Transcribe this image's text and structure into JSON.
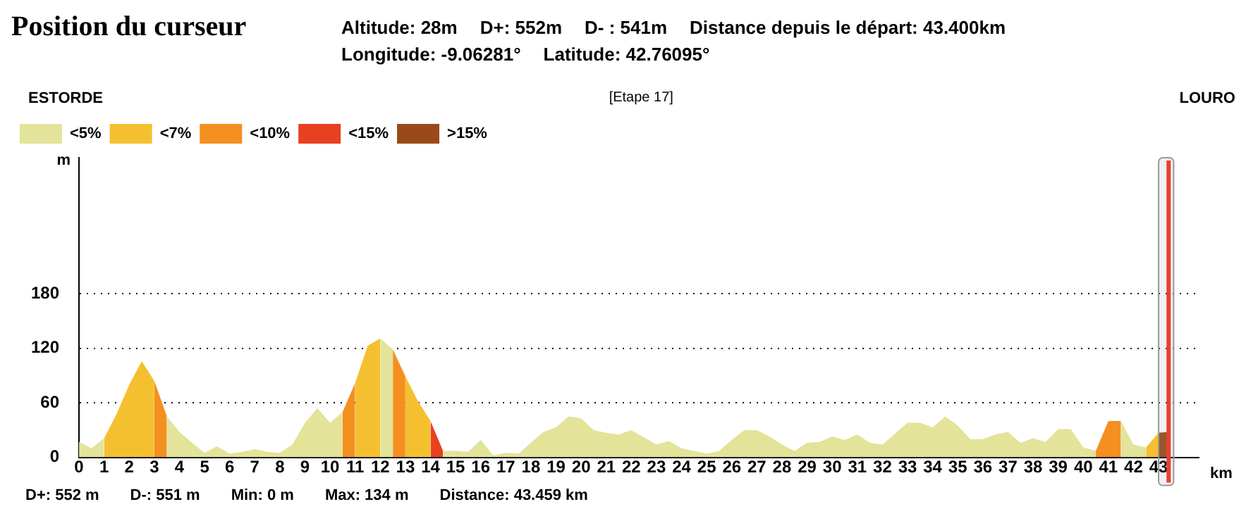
{
  "chart_data": {
    "type": "area",
    "title": "Position du curseur",
    "xlabel": "km",
    "ylabel": "m",
    "annotations": [
      "Altitude: 28m",
      "D+: 552m",
      "D- : 541m",
      "Distance depuis le départ: 43.400km",
      "Longitude: -9.06281°",
      "Latitude: 42.76095°",
      "ESTORDE",
      "[Etape 17]",
      "LOURO",
      "D+: 552 m",
      "D-: 551 m",
      "Min: 0 m",
      "Max: 134 m",
      "Distance: 43.459 km"
    ],
    "x": [
      0,
      0.5,
      1,
      1.5,
      2,
      2.5,
      3,
      3.5,
      4,
      4.5,
      5,
      5.5,
      6,
      6.5,
      7,
      7.5,
      8,
      8.5,
      9,
      9.5,
      10,
      10.5,
      11,
      11.5,
      12,
      12.5,
      13,
      13.5,
      14,
      14.5,
      15,
      15.5,
      16,
      16.5,
      17,
      17.5,
      18,
      18.5,
      19,
      19.5,
      20,
      20.5,
      21,
      21.5,
      22,
      22.5,
      23,
      23.5,
      24,
      24.5,
      25,
      25.5,
      26,
      26.5,
      27,
      27.5,
      28,
      28.5,
      29,
      29.5,
      30,
      30.5,
      31,
      31.5,
      32,
      32.5,
      33,
      33.5,
      34,
      34.5,
      35,
      35.5,
      36,
      36.5,
      37,
      37.5,
      38,
      38.5,
      39,
      39.5,
      40,
      40.5,
      41,
      41.5,
      42,
      42.5
    ],
    "series": [
      {
        "name": "<5%",
        "color": "#e3e39a",
        "values": [
          17,
          10,
          21,
          null,
          null,
          null,
          null,
          45,
          28,
          16,
          5,
          12,
          4,
          6,
          9,
          6,
          5,
          14,
          38,
          54,
          38,
          50,
          null,
          null,
          131,
          119,
          null,
          null,
          null,
          7,
          7,
          6,
          19,
          2,
          5,
          4,
          16,
          28,
          33,
          45,
          43,
          30,
          27,
          25,
          30,
          22,
          14,
          18,
          10,
          7,
          4,
          7,
          19,
          30,
          30,
          23,
          14,
          7,
          16,
          17,
          23,
          19,
          25,
          16,
          14,
          26,
          38,
          38,
          33,
          45,
          35,
          20,
          20,
          25,
          28,
          16,
          21,
          17,
          31,
          31,
          11,
          7,
          null,
          40,
          14,
          11
        ]
      },
      {
        "name": "<7%",
        "color": "#f5c030",
        "x": [
          1,
          1.5,
          2,
          2.5,
          3,
          5,
          11,
          11.5,
          12,
          12.5,
          13,
          13.5,
          14,
          20,
          42.5,
          43
        ],
        "values": [
          21,
          48,
          80,
          106,
          84,
          null,
          82,
          123,
          131,
          null,
          89,
          62,
          40,
          null,
          11,
          27
        ]
      },
      {
        "name": "<10%",
        "color": "#f39020",
        "x": [
          3,
          3.5,
          7,
          10.5,
          11,
          12,
          12.5,
          13,
          20,
          40.5,
          41,
          41.5
        ],
        "values": [
          84,
          45,
          null,
          50,
          82,
          null,
          119,
          89,
          null,
          7,
          40,
          40
        ]
      },
      {
        "name": "<15%",
        "color": "#e84020",
        "x": [
          14,
          14.5
        ],
        "values": [
          40,
          7
        ]
      },
      {
        "name": ">15%",
        "color": "#9a4a18",
        "x": [
          43,
          43.4
        ],
        "values": [
          27,
          28
        ]
      }
    ],
    "xlim": [
      0,
      44.6
    ],
    "xticks": [
      0,
      1,
      2,
      3,
      4,
      5,
      6,
      7,
      8,
      9,
      10,
      11,
      12,
      13,
      14,
      15,
      16,
      17,
      18,
      19,
      20,
      21,
      22,
      23,
      24,
      25,
      26,
      27,
      28,
      29,
      30,
      31,
      32,
      33,
      34,
      35,
      36,
      37,
      38,
      39,
      40,
      41,
      42,
      43
    ],
    "ylim": [
      0,
      330
    ],
    "yticks": [
      0,
      60,
      120,
      180
    ],
    "grid": "y",
    "legend": "top left",
    "bands": [
      {
        "axis": "x",
        "from": 43,
        "to": 43.6,
        "color": "#999999"
      }
    ],
    "ref_lines": [
      {
        "axis": "x",
        "value": 43.4,
        "color": "#e84030"
      }
    ]
  }
}
